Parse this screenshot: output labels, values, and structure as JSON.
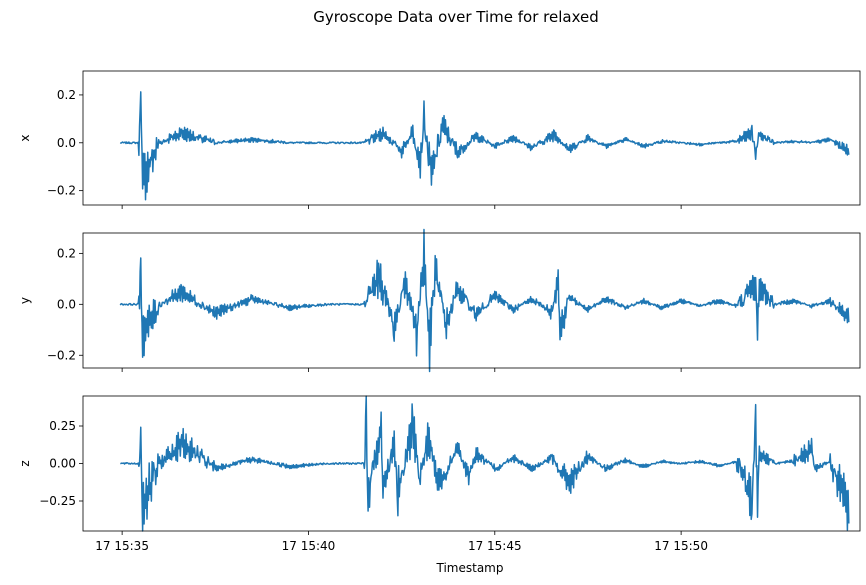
{
  "chart_data": {
    "type": "line",
    "title": "Gyroscope Data over Time for relaxed",
    "xlabel": "Timestamp",
    "x_tick_labels": [
      "17 15:35",
      "17 15:40",
      "17 15:45",
      "17 15:50"
    ],
    "x_tick_minutes": [
      35,
      40,
      45,
      50
    ],
    "x_range_minutes": [
      33.95,
      54.8
    ],
    "data_range_minutes": [
      34.95,
      54.5
    ],
    "line_color": "#1f77b4",
    "grid": false,
    "legend": "none",
    "panels": [
      {
        "ylabel": "x",
        "ylim": [
          -0.26,
          0.3
        ],
        "y_ticks": [
          -0.2,
          0.0,
          0.2
        ],
        "y_tick_labels": [
          "−0.2",
          "0.0",
          "0.2"
        ],
        "series": {
          "x": [
            34.95,
            35.45,
            35.5,
            35.55,
            36.0,
            36.6,
            37.5,
            38.5,
            39.5,
            40.5,
            41.5,
            42.0,
            42.5,
            42.8,
            43.0,
            43.1,
            43.3,
            43.6,
            44.0,
            44.5,
            45.0,
            45.5,
            46.0,
            46.6,
            47.0,
            47.5,
            48.0,
            48.5,
            49.0,
            49.5,
            50.0,
            50.5,
            51.0,
            51.5,
            51.9,
            52.0,
            52.1,
            52.5,
            53.0,
            53.5,
            54.0,
            54.5
          ],
          "y": [
            0.0,
            0.0,
            0.27,
            -0.23,
            0.0,
            0.06,
            0.0,
            0.02,
            0.0,
            0.0,
            0.0,
            0.06,
            -0.05,
            0.07,
            -0.12,
            0.13,
            -0.2,
            0.11,
            -0.06,
            0.04,
            -0.02,
            0.03,
            -0.03,
            0.05,
            -0.04,
            0.03,
            -0.02,
            0.02,
            -0.02,
            0.01,
            0.0,
            -0.01,
            0.0,
            0.01,
            0.06,
            -0.06,
            0.05,
            0.0,
            0.01,
            0.0,
            0.02,
            -0.05
          ]
        }
      },
      {
        "ylabel": "y",
        "ylim": [
          -0.25,
          0.28
        ],
        "y_ticks": [
          -0.2,
          0.0,
          0.2
        ],
        "y_tick_labels": [
          "−0.2",
          "0.0",
          "0.2"
        ],
        "series": {
          "x": [
            34.95,
            35.45,
            35.5,
            35.55,
            36.0,
            36.6,
            37.5,
            38.5,
            39.5,
            40.5,
            41.5,
            41.9,
            42.3,
            42.6,
            42.9,
            43.1,
            43.25,
            43.4,
            43.7,
            44.0,
            44.5,
            45.0,
            45.5,
            46.0,
            46.5,
            46.7,
            46.75,
            47.0,
            47.5,
            48.0,
            48.5,
            49.0,
            49.5,
            50.0,
            50.5,
            51.0,
            51.5,
            52.0,
            52.05,
            52.1,
            52.5,
            53.0,
            53.5,
            54.0,
            54.5
          ],
          "y": [
            0.0,
            0.0,
            0.18,
            -0.18,
            0.0,
            0.07,
            -0.05,
            0.03,
            -0.02,
            0.0,
            0.0,
            0.16,
            -0.13,
            0.14,
            -0.15,
            0.27,
            -0.23,
            0.19,
            -0.12,
            0.09,
            -0.06,
            0.05,
            -0.03,
            0.03,
            -0.04,
            0.14,
            -0.15,
            0.04,
            -0.03,
            0.03,
            -0.02,
            0.02,
            -0.02,
            0.02,
            -0.01,
            0.02,
            -0.01,
            0.12,
            -0.16,
            0.1,
            0.0,
            0.02,
            -0.01,
            0.02,
            -0.07
          ]
        }
      },
      {
        "ylabel": "z",
        "ylim": [
          -0.45,
          0.45
        ],
        "y_ticks": [
          -0.25,
          0.0,
          0.25
        ],
        "y_tick_labels": [
          "−0.25",
          "0.00",
          "0.25"
        ],
        "series": {
          "x": [
            34.95,
            35.45,
            35.5,
            35.55,
            36.0,
            36.6,
            37.5,
            38.5,
            39.5,
            40.5,
            41.5,
            41.55,
            41.6,
            41.95,
            42.0,
            42.3,
            42.4,
            42.8,
            43.0,
            43.2,
            43.5,
            44.0,
            44.3,
            44.5,
            45.0,
            45.5,
            46.0,
            46.5,
            47.0,
            47.5,
            48.0,
            48.5,
            49.0,
            49.5,
            50.0,
            50.5,
            51.0,
            51.5,
            51.9,
            52.0,
            52.05,
            52.1,
            52.5,
            53.0,
            53.5,
            53.6,
            54.0,
            54.5
          ],
          "y": [
            0.0,
            0.0,
            0.2,
            -0.4,
            0.0,
            0.2,
            -0.05,
            0.04,
            -0.03,
            0.0,
            0.0,
            0.4,
            -0.3,
            0.38,
            -0.25,
            0.2,
            -0.3,
            0.36,
            -0.15,
            0.25,
            -0.2,
            0.14,
            -0.12,
            0.1,
            -0.06,
            0.06,
            -0.05,
            0.05,
            -0.18,
            0.06,
            -0.05,
            0.03,
            -0.03,
            0.02,
            0.0,
            0.02,
            -0.02,
            0.02,
            -0.36,
            0.34,
            -0.3,
            0.1,
            0.0,
            0.02,
            0.14,
            -0.05,
            0.02,
            -0.4
          ]
        }
      }
    ]
  }
}
